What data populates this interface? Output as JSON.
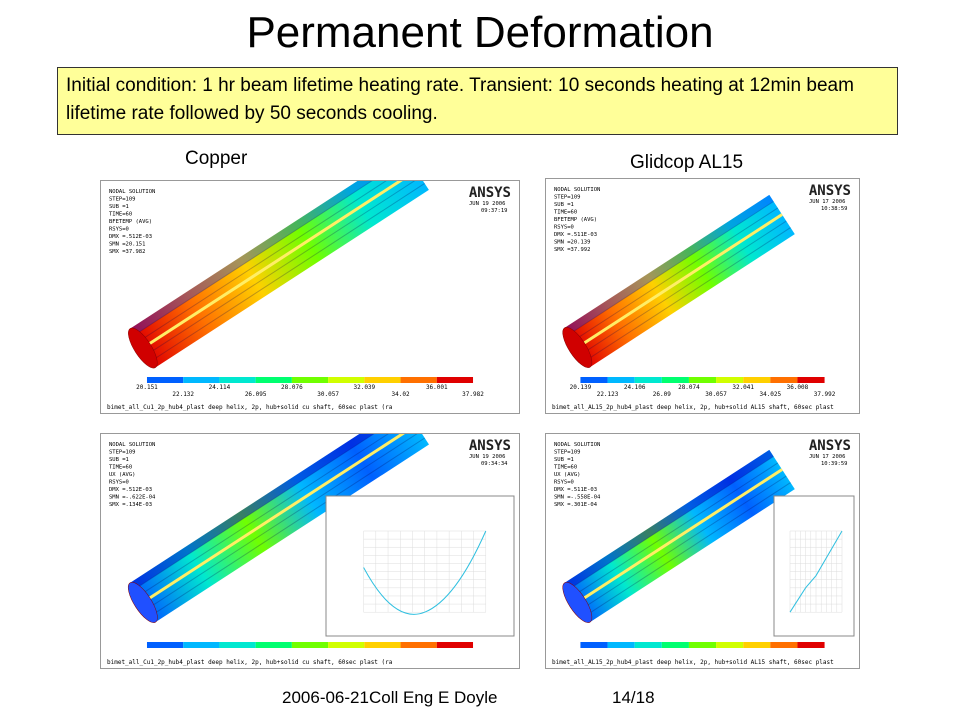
{
  "title": "Permanent Deformation",
  "note": "Initial condition: 1 hr beam lifetime heating rate.  Transient: 10 seconds heating at 12min beam lifetime rate followed by 50 seconds cooling.",
  "labels": [
    "Copper",
    "Glidcop AL15"
  ],
  "footer": {
    "left": "2006-06-21Coll Eng E Doyle",
    "right": "14/18"
  },
  "panels": [
    {
      "lines": [
        "NODAL SOLUTION",
        "STEP=109",
        "SUB =1",
        "TIME=60",
        "BFETEMP  (AVG)",
        "RSYS=0",
        "DMX =.512E-03",
        "SMN =20.151",
        "SMX =37.982"
      ],
      "logo": "ANSYS",
      "date": "JUN 19 2006",
      "time": "09:37:19",
      "legend": [
        "20.151",
        "22.132",
        "24.114",
        "26.095",
        "28.076",
        "30.057",
        "32.039",
        "34.02",
        "36.001",
        "37.982"
      ],
      "caption": "bimet_all_Cu1_2p_hub4_plast deep helix, 2p, hub+solid cu shaft, 60sec plast (ra"
    },
    {
      "lines": [
        "NODAL SOLUTION",
        "STEP=109",
        "SUB =1",
        "TIME=60",
        "BFETEMP  (AVG)",
        "RSYS=0",
        "DMX =.511E-03",
        "SMN =20.139",
        "SMX =37.992"
      ],
      "logo": "ANSYS",
      "date": "JUN 17 2006",
      "time": "10:38:59",
      "legend": [
        "20.139",
        "22.123",
        "24.106",
        "26.09",
        "28.074",
        "30.057",
        "32.041",
        "34.025",
        "36.008",
        "37.992"
      ],
      "caption": "bimet_all_AL15_2p_hub4_plast deep helix, 2p, hub+solid AL15 shaft, 60sec plast"
    },
    {
      "lines": [
        "NODAL SOLUTION",
        "STEP=109",
        "SUB =1",
        "TIME=60",
        "UX       (AVG)",
        "RSYS=0",
        "DMX =.512E-03",
        "SMN =-.622E-04",
        "SMX =.134E-03"
      ],
      "logo": "ANSYS",
      "date": "JUN 19 2006",
      "time": "09:34:34",
      "caption": "bimet_all_Cu1_2p_hub4_plast deep helix, 2p, hub+solid cu shaft, 60sec plast (ra"
    },
    {
      "lines": [
        "NODAL SOLUTION",
        "STEP=109",
        "SUB =1",
        "TIME=60",
        "UX       (AVG)",
        "RSYS=0",
        "DMX =.511E-03",
        "SMN =-.558E-04",
        "SMX =.301E-04"
      ],
      "logo": "ANSYS",
      "date": "JUN 17 2006",
      "time": "10:39:59",
      "caption": "bimet_all_AL15_2p_hub4_plast deep helix, 2p, hub+solid AL15 shaft, 60sec plast"
    }
  ]
}
